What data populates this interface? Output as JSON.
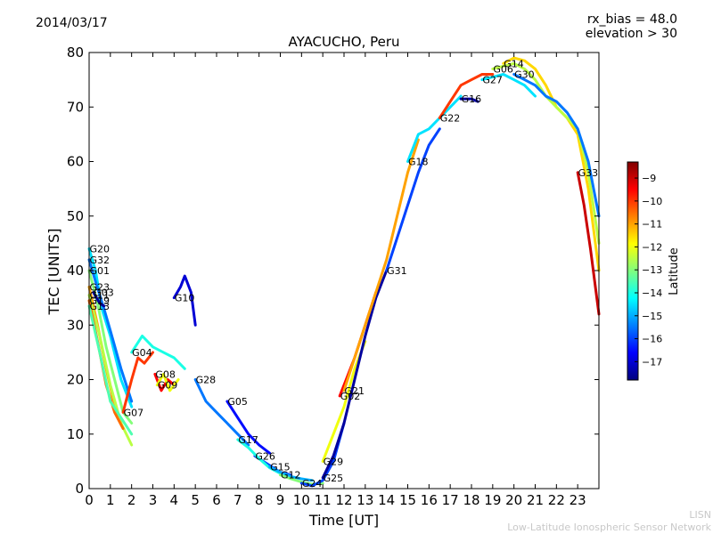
{
  "header": {
    "date": "2014/03/17",
    "rx_bias": "rx_bias = 48.0",
    "elevation": "elevation > 30"
  },
  "footer": {
    "org_short": "LISN",
    "org_long": "Low-Latitude Ionospheric Sensor Network"
  },
  "chart_data": {
    "type": "scatter",
    "title": "AYACUCHO, Peru",
    "xlabel": "Time [UT]",
    "ylabel": "TEC [UNITS]",
    "xlim": [
      0,
      24
    ],
    "ylim": [
      0,
      80
    ],
    "xticks": [
      0,
      1,
      2,
      3,
      4,
      5,
      6,
      7,
      8,
      9,
      10,
      11,
      12,
      13,
      14,
      15,
      16,
      17,
      18,
      19,
      20,
      21,
      22,
      23
    ],
    "yticks": [
      0,
      10,
      20,
      30,
      40,
      50,
      60,
      70,
      80
    ],
    "colorbar": {
      "label": "Latitude",
      "range": [
        -17.8,
        -8.3
      ],
      "ticks": [
        -9,
        -10,
        -11,
        -12,
        -13,
        -14,
        -15,
        -16,
        -17
      ],
      "colormap": [
        "#00007f",
        "#0000ff",
        "#007fff",
        "#00ffff",
        "#7fff7f",
        "#ffff00",
        "#ff7f00",
        "#ff0000",
        "#7f0000"
      ]
    },
    "series": [
      {
        "name": "G20",
        "lat": -14.5,
        "points": [
          [
            0,
            44
          ],
          [
            0.3,
            40
          ],
          [
            0.6,
            33
          ],
          [
            1,
            28
          ],
          [
            1.5,
            20
          ],
          [
            2,
            15
          ]
        ]
      },
      {
        "name": "G32",
        "lat": -15.5,
        "points": [
          [
            0,
            42
          ],
          [
            0.3,
            38
          ],
          [
            0.7,
            33
          ],
          [
            1,
            29
          ],
          [
            1.5,
            22
          ],
          [
            2,
            16
          ]
        ]
      },
      {
        "name": "G01",
        "lat": -13,
        "points": [
          [
            0,
            40
          ],
          [
            0.4,
            34
          ],
          [
            0.8,
            26
          ],
          [
            1.2,
            20
          ],
          [
            1.6,
            14
          ],
          [
            2,
            12
          ]
        ]
      },
      {
        "name": "G23",
        "lat": -11,
        "points": [
          [
            0,
            37
          ],
          [
            0.4,
            30
          ],
          [
            0.8,
            22
          ],
          [
            1.1,
            17
          ],
          [
            1.5,
            12
          ]
        ]
      },
      {
        "name": "G11",
        "lat": -12.5,
        "points": [
          [
            0,
            35.5
          ],
          [
            0.5,
            28
          ],
          [
            1,
            19
          ],
          [
            1.5,
            12
          ],
          [
            2,
            8
          ]
        ]
      },
      {
        "name": "G19",
        "lat": -10.5,
        "points": [
          [
            0,
            34.5
          ],
          [
            0.4,
            27
          ],
          [
            0.8,
            19
          ],
          [
            1.2,
            14
          ],
          [
            1.6,
            11
          ]
        ]
      },
      {
        "name": "G03",
        "lat": -17.5,
        "points": [
          [
            0.2,
            36
          ],
          [
            0.5,
            34
          ],
          [
            0.7,
            33.5
          ]
        ]
      },
      {
        "name": "G13",
        "lat": -13.5,
        "points": [
          [
            0,
            33.5
          ],
          [
            0.5,
            25
          ],
          [
            1,
            16
          ],
          [
            1.5,
            13
          ],
          [
            2,
            10
          ]
        ]
      },
      {
        "name": "G07",
        "lat": -10,
        "points": [
          [
            1.6,
            14
          ],
          [
            2,
            20
          ],
          [
            2.3,
            24
          ],
          [
            2.6,
            23
          ],
          [
            3,
            25
          ]
        ]
      },
      {
        "name": "G04",
        "lat": -14,
        "points": [
          [
            2,
            25
          ],
          [
            2.5,
            28
          ],
          [
            3,
            26
          ],
          [
            3.5,
            25
          ],
          [
            4,
            24
          ],
          [
            4.5,
            22
          ]
        ]
      },
      {
        "name": "G08",
        "lat": -9.5,
        "points": [
          [
            3.1,
            21
          ],
          [
            3.4,
            18
          ],
          [
            3.7,
            20
          ],
          [
            4,
            19
          ]
        ]
      },
      {
        "name": "G09",
        "lat": -12,
        "points": [
          [
            3.2,
            19
          ],
          [
            3.5,
            21
          ],
          [
            3.8,
            18
          ],
          [
            4.2,
            20
          ]
        ]
      },
      {
        "name": "G10",
        "lat": -17,
        "points": [
          [
            4,
            35
          ],
          [
            4.3,
            37
          ],
          [
            4.5,
            39
          ],
          [
            4.8,
            36
          ],
          [
            5,
            30
          ]
        ]
      },
      {
        "name": "G28",
        "lat": -15.5,
        "points": [
          [
            5,
            20
          ],
          [
            5.5,
            16
          ],
          [
            6,
            14
          ],
          [
            6.5,
            12
          ],
          [
            7,
            10
          ],
          [
            7.5,
            8
          ]
        ]
      },
      {
        "name": "G05",
        "lat": -16.5,
        "points": [
          [
            6.5,
            16
          ],
          [
            7,
            13
          ],
          [
            7.5,
            10
          ],
          [
            8,
            8
          ],
          [
            8.5,
            6.5
          ]
        ]
      },
      {
        "name": "G26",
        "lat": -16,
        "points": [
          [
            7.8,
            6
          ],
          [
            8.2,
            5
          ],
          [
            8.6,
            4
          ],
          [
            9,
            3
          ],
          [
            9.5,
            2.5
          ]
        ]
      },
      {
        "name": "G17",
        "lat": -14,
        "points": [
          [
            7,
            9
          ],
          [
            7.5,
            7.5
          ],
          [
            8,
            5.5
          ],
          [
            8.5,
            3.8
          ],
          [
            9,
            2.8
          ],
          [
            9.5,
            2
          ]
        ]
      },
      {
        "name": "G15",
        "lat": -15,
        "points": [
          [
            8.5,
            4
          ],
          [
            9,
            3
          ],
          [
            9.5,
            2.2
          ],
          [
            10,
            1.8
          ],
          [
            10.5,
            1.5
          ]
        ]
      },
      {
        "name": "G12",
        "lat": -13,
        "points": [
          [
            9,
            2.5
          ],
          [
            9.5,
            1.8
          ],
          [
            10,
            1.2
          ],
          [
            10.5,
            0.8
          ],
          [
            11,
            1
          ]
        ]
      },
      {
        "name": "G24",
        "lat": -16,
        "points": [
          [
            10,
            1
          ],
          [
            10.5,
            0.5
          ],
          [
            11,
            1.5
          ],
          [
            11.5,
            5
          ],
          [
            12,
            12
          ]
        ]
      },
      {
        "name": "G02",
        "lat": -9.5,
        "points": [
          [
            11.8,
            17
          ],
          [
            12.1,
            20
          ],
          [
            12.5,
            24
          ],
          [
            13,
            30
          ],
          [
            13.5,
            36
          ]
        ]
      },
      {
        "name": "G29",
        "lat": -12,
        "points": [
          [
            11,
            5
          ],
          [
            11.5,
            10
          ],
          [
            12,
            15
          ],
          [
            12.5,
            22
          ],
          [
            13,
            27
          ]
        ]
      },
      {
        "name": "G25",
        "lat": -17.5,
        "points": [
          [
            11,
            2
          ],
          [
            11.5,
            6
          ],
          [
            12,
            12
          ],
          [
            12.5,
            20
          ],
          [
            13,
            28
          ],
          [
            13.5,
            35
          ],
          [
            14,
            40
          ]
        ]
      },
      {
        "name": "G21",
        "lat": -11,
        "points": [
          [
            12,
            18
          ],
          [
            13,
            30
          ],
          [
            14,
            42
          ],
          [
            14.5,
            50
          ],
          [
            15,
            58
          ],
          [
            15.5,
            64
          ]
        ]
      },
      {
        "name": "G31",
        "lat": -16,
        "points": [
          [
            14,
            40
          ],
          [
            14.5,
            46
          ],
          [
            15,
            52
          ],
          [
            15.5,
            58
          ],
          [
            16,
            63
          ],
          [
            16.5,
            66
          ]
        ]
      },
      {
        "name": "G18",
        "lat": -14.5,
        "points": [
          [
            15,
            60
          ],
          [
            15.5,
            65
          ],
          [
            16,
            66
          ],
          [
            16.5,
            68
          ],
          [
            17,
            70
          ],
          [
            17.5,
            72
          ]
        ]
      },
      {
        "name": "G22",
        "lat": -10,
        "points": [
          [
            16.5,
            68
          ],
          [
            17,
            71
          ],
          [
            17.5,
            74
          ],
          [
            18,
            75
          ],
          [
            18.5,
            76
          ],
          [
            19,
            76
          ]
        ]
      },
      {
        "name": "G16",
        "lat": -17.5,
        "points": [
          [
            17.5,
            71.5
          ],
          [
            18,
            71.5
          ],
          [
            18.3,
            71
          ]
        ]
      },
      {
        "name": "G27",
        "lat": -14.5,
        "points": [
          [
            18.5,
            75
          ],
          [
            19,
            75.5
          ],
          [
            19.5,
            76
          ],
          [
            20,
            75
          ],
          [
            20.5,
            74
          ],
          [
            21,
            72
          ]
        ]
      },
      {
        "name": "G14",
        "lat": -11.5,
        "points": [
          [
            19.5,
            78
          ],
          [
            20,
            79
          ],
          [
            20.5,
            78.5
          ],
          [
            21,
            77
          ],
          [
            21.5,
            74
          ],
          [
            22,
            70
          ],
          [
            22.5,
            68
          ],
          [
            23,
            65
          ],
          [
            23.5,
            55
          ],
          [
            24,
            40
          ]
        ]
      },
      {
        "name": "G06",
        "lat": -12.5,
        "points": [
          [
            19,
            77
          ],
          [
            19.5,
            77.5
          ],
          [
            20,
            78
          ],
          [
            20.5,
            77
          ],
          [
            21,
            75
          ],
          [
            21.5,
            72
          ],
          [
            22,
            70
          ],
          [
            22.5,
            68
          ],
          [
            23,
            66
          ],
          [
            23.5,
            58
          ],
          [
            24,
            45
          ]
        ]
      },
      {
        "name": "G30",
        "lat": -15.5,
        "points": [
          [
            20,
            76
          ],
          [
            20.5,
            75
          ],
          [
            21,
            74
          ],
          [
            21.5,
            72
          ],
          [
            22,
            71
          ],
          [
            22.5,
            69
          ],
          [
            23,
            66
          ],
          [
            23.5,
            60
          ],
          [
            24,
            50
          ]
        ]
      },
      {
        "name": "G33",
        "lat": -9,
        "points": [
          [
            23,
            58
          ],
          [
            23.3,
            52
          ],
          [
            23.6,
            44
          ],
          [
            24,
            32
          ]
        ]
      }
    ]
  }
}
